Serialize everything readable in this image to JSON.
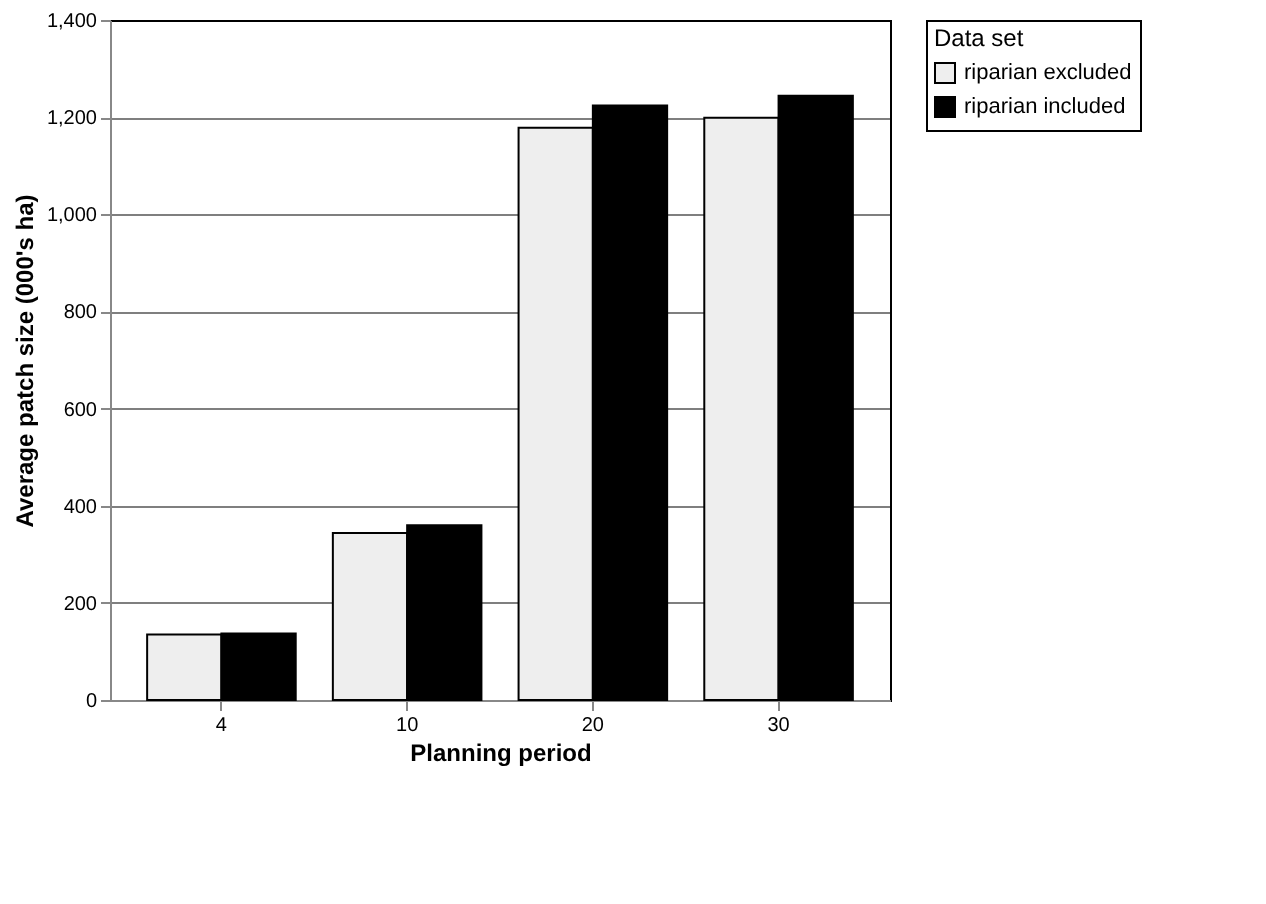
{
  "chart_data": {
    "type": "bar",
    "xlabel": "Planning period",
    "ylabel": "Average patch size (000's ha)",
    "legend_title": "Data set",
    "categories": [
      "4",
      "10",
      "20",
      "30"
    ],
    "series": [
      {
        "name": "riparian excluded",
        "color": "#eeeeee",
        "values": [
          135,
          344,
          1178,
          1199
        ]
      },
      {
        "name": "riparian included",
        "color": "#000000",
        "values": [
          137,
          360,
          1224,
          1244
        ]
      }
    ],
    "ylim": [
      0,
      1400
    ],
    "yticks": [
      0,
      200,
      400,
      600,
      800,
      {
        "value": 1000,
        "label": "1,000"
      },
      {
        "value": 1200,
        "label": "1,200"
      },
      {
        "value": 1400,
        "label": "1,400"
      }
    ],
    "grid": "y",
    "legend": "right"
  }
}
